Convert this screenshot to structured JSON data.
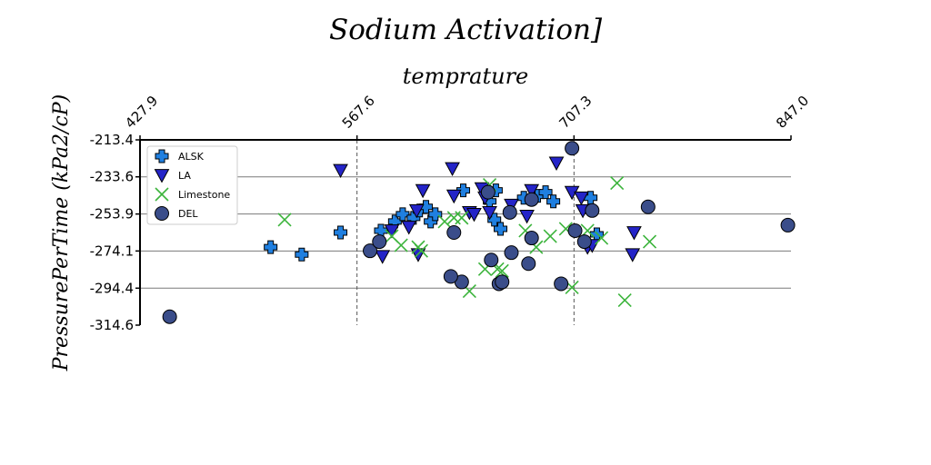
{
  "chart_data": {
    "type": "scatter",
    "title": "Sodium Activation]",
    "xlabel": "temprature",
    "ylabel": "PressurePerTime (kPa2/cP)",
    "xlim": [
      427.9,
      847.0
    ],
    "ylim": [
      -314.6,
      -213.4
    ],
    "x_ticks": [
      "427.9",
      "567.6",
      "707.3",
      "847.0"
    ],
    "y_ticks": [
      "-213.4",
      "-233.6",
      "-253.9",
      "-274.1",
      "-294.4",
      "-314.6"
    ],
    "x_axis_position": "top",
    "grid": {
      "horizontal": true,
      "vertical_dashed": true
    },
    "legend_position": "upper-left",
    "series": [
      {
        "name": "ALSK",
        "marker": "plus",
        "color": "#1f7fe0",
        "points": [
          [
            512,
            -272
          ],
          [
            532,
            -276
          ],
          [
            557,
            -264
          ],
          [
            583,
            -263
          ],
          [
            592,
            -258
          ],
          [
            597,
            -254
          ],
          [
            604,
            -256
          ],
          [
            608,
            -252
          ],
          [
            612,
            -250
          ],
          [
            615,
            -258
          ],
          [
            618,
            -254
          ],
          [
            636,
            -241
          ],
          [
            653,
            -247
          ],
          [
            656,
            -257
          ],
          [
            660,
            -262
          ],
          [
            657,
            -241
          ],
          [
            675,
            -245
          ],
          [
            684,
            -244
          ],
          [
            689,
            -242
          ],
          [
            694,
            -247
          ],
          [
            718,
            -245
          ],
          [
            722,
            -265
          ]
        ]
      },
      {
        "name": "LA",
        "marker": "triangle-down",
        "color": "#2424c8",
        "points": [
          [
            557,
            -230
          ],
          [
            584,
            -277
          ],
          [
            590,
            -263
          ],
          [
            601,
            -261
          ],
          [
            606,
            -252
          ],
          [
            607,
            -276
          ],
          [
            610,
            -241
          ],
          [
            629,
            -229
          ],
          [
            630,
            -244
          ],
          [
            640,
            -253
          ],
          [
            643,
            -254
          ],
          [
            648,
            -240
          ],
          [
            650,
            -245
          ],
          [
            653,
            -253
          ],
          [
            667,
            -249
          ],
          [
            677,
            -255
          ],
          [
            680,
            -241
          ],
          [
            696,
            -226
          ],
          [
            706,
            -242
          ],
          [
            712,
            -245
          ],
          [
            713,
            -252
          ],
          [
            716,
            -272
          ],
          [
            719,
            -271
          ],
          [
            746,
            -264
          ],
          [
            745,
            -276
          ]
        ]
      },
      {
        "name": "Limestone",
        "marker": "x",
        "color": "#3cb43c",
        "points": [
          [
            484,
            -250
          ],
          [
            521,
            -257
          ],
          [
            590,
            -266
          ],
          [
            596,
            -271
          ],
          [
            607,
            -272
          ],
          [
            609,
            -274
          ],
          [
            624,
            -258
          ],
          [
            630,
            -256
          ],
          [
            635,
            -256
          ],
          [
            640,
            -296
          ],
          [
            650,
            -284
          ],
          [
            653,
            -238
          ],
          [
            658,
            -284
          ],
          [
            661,
            -285
          ],
          [
            676,
            -263
          ],
          [
            683,
            -272
          ],
          [
            692,
            -266
          ],
          [
            702,
            -262
          ],
          [
            706,
            -294
          ],
          [
            716,
            -263
          ],
          [
            725,
            -267
          ],
          [
            735,
            -237
          ],
          [
            740,
            -301
          ],
          [
            756,
            -269
          ]
        ]
      },
      {
        "name": "DEL",
        "marker": "circle",
        "color": "#3a4d8a",
        "points": [
          [
            447,
            -310
          ],
          [
            576,
            -274
          ],
          [
            582,
            -269
          ],
          [
            630,
            -264
          ],
          [
            635,
            -291
          ],
          [
            628,
            -288
          ],
          [
            652,
            -242
          ],
          [
            654,
            -279
          ],
          [
            666,
            -253
          ],
          [
            659,
            -292
          ],
          [
            661,
            -291
          ],
          [
            667,
            -275
          ],
          [
            680,
            -246
          ],
          [
            678,
            -281
          ],
          [
            680,
            -267
          ],
          [
            699,
            -292
          ],
          [
            706,
            -218
          ],
          [
            708,
            -263
          ],
          [
            714,
            -269
          ],
          [
            719,
            -252
          ],
          [
            755,
            -250
          ],
          [
            845,
            -260
          ]
        ]
      }
    ]
  }
}
